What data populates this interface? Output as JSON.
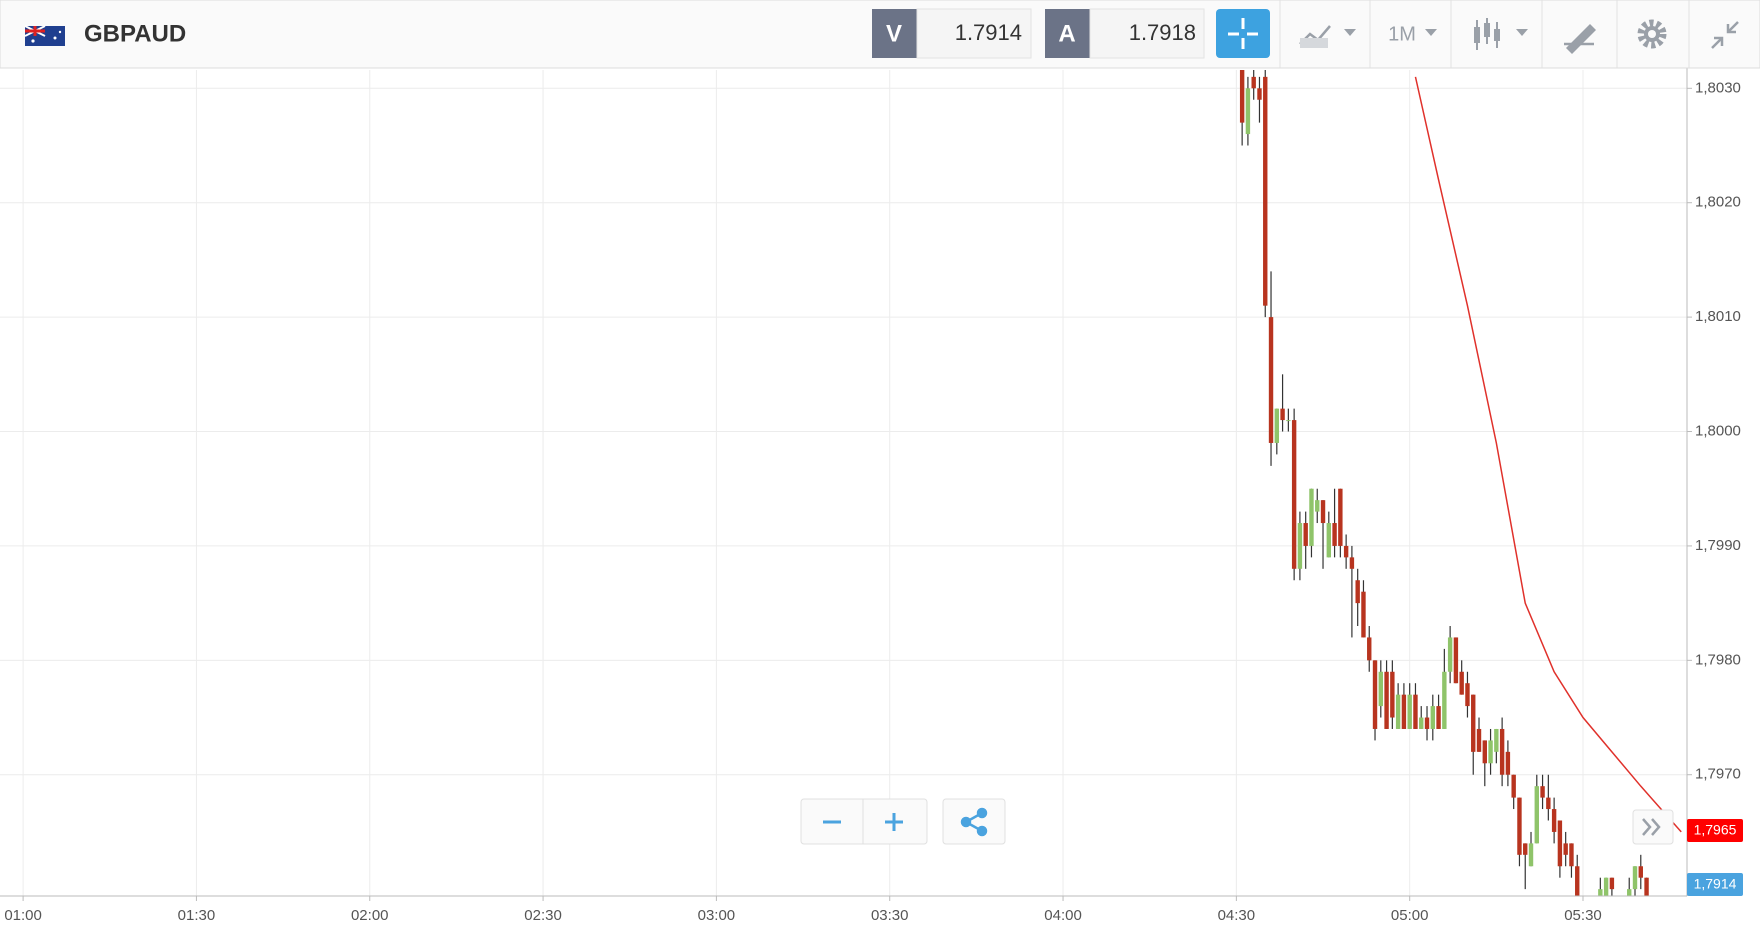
{
  "toolbar": {
    "symbol": "GBPAUD",
    "sell_label": "V",
    "sell_price": "1.7914",
    "buy_label": "A",
    "buy_price": "1.7918",
    "timeframe": "1M"
  },
  "chart_data": {
    "type": "candlestick",
    "x": [
      "04:31",
      "04:32",
      "04:33",
      "04:34",
      "04:35",
      "04:36",
      "04:37",
      "04:38",
      "04:39",
      "04:40",
      "04:41",
      "04:42",
      "04:43",
      "04:44",
      "04:45",
      "04:46",
      "04:47",
      "04:48",
      "04:49",
      "04:50",
      "04:51",
      "04:52",
      "04:53",
      "04:54",
      "04:55",
      "04:56",
      "04:57",
      "04:58",
      "04:59",
      "05:00",
      "05:01",
      "05:02",
      "05:03",
      "05:04",
      "05:05",
      "05:06",
      "05:07",
      "05:08",
      "05:09",
      "05:10",
      "05:11",
      "05:12",
      "05:13",
      "05:14",
      "05:15",
      "05:16",
      "05:17",
      "05:18",
      "05:19",
      "05:20",
      "05:21",
      "05:22",
      "05:23",
      "05:24",
      "05:25",
      "05:26",
      "05:27",
      "05:28",
      "05:29",
      "05:33",
      "05:34",
      "05:35",
      "05:38",
      "05:39",
      "05:40",
      "05:41"
    ],
    "open": [
      1.8033,
      1.8026,
      1.8031,
      1.803,
      1.8031,
      1.801,
      1.7999,
      1.8002,
      1.8001,
      1.8001,
      1.7988,
      1.7992,
      1.799,
      1.7993,
      1.7994,
      1.7989,
      1.7992,
      1.7995,
      1.799,
      1.7989,
      1.7987,
      1.7986,
      1.7982,
      1.798,
      1.7976,
      1.7979,
      1.7979,
      1.7974,
      1.7977,
      1.7974,
      1.7977,
      1.7974,
      1.7975,
      1.7974,
      1.7976,
      1.7974,
      1.7979,
      1.7982,
      1.7979,
      1.7978,
      1.7977,
      1.7974,
      1.7973,
      1.7971,
      1.7972,
      1.7974,
      1.7972,
      1.797,
      1.7968,
      1.7964,
      1.7962,
      1.7964,
      1.7969,
      1.7968,
      1.7967,
      1.7966,
      1.7964,
      1.7964,
      1.7962,
      1.7958,
      1.7959,
      1.7961,
      1.7959,
      1.796,
      1.7962,
      1.7961
    ],
    "high": [
      1.8034,
      1.8031,
      1.8032,
      1.8031,
      1.8032,
      1.8014,
      1.8002,
      1.8005,
      1.8002,
      1.8002,
      1.7993,
      1.7993,
      1.7995,
      1.7995,
      1.7994,
      1.7993,
      1.7995,
      1.7995,
      1.7991,
      1.799,
      1.7988,
      1.7987,
      1.7983,
      1.798,
      1.798,
      1.798,
      1.798,
      1.7978,
      1.7978,
      1.7978,
      1.7978,
      1.7976,
      1.7976,
      1.7977,
      1.7977,
      1.7981,
      1.7983,
      1.7982,
      1.798,
      1.7979,
      1.7977,
      1.7975,
      1.7973,
      1.7974,
      1.7974,
      1.7975,
      1.7973,
      1.797,
      1.7968,
      1.7964,
      1.7965,
      1.797,
      1.797,
      1.797,
      1.7968,
      1.7966,
      1.7965,
      1.7964,
      1.7963,
      1.7961,
      1.7961,
      1.7961,
      1.7961,
      1.7962,
      1.7963,
      1.7961
    ],
    "low": [
      1.8025,
      1.8025,
      1.8029,
      1.8027,
      1.801,
      1.7997,
      1.7998,
      1.8,
      1.8,
      1.7987,
      1.7987,
      1.7988,
      1.7989,
      1.7992,
      1.7988,
      1.7989,
      1.7989,
      1.7989,
      1.7988,
      1.7982,
      1.7983,
      1.7982,
      1.7979,
      1.7973,
      1.7975,
      1.7974,
      1.7974,
      1.7974,
      1.7974,
      1.7974,
      1.7974,
      1.7974,
      1.7973,
      1.7973,
      1.7974,
      1.7974,
      1.7978,
      1.7978,
      1.7977,
      1.7975,
      1.797,
      1.7972,
      1.7969,
      1.797,
      1.7971,
      1.7969,
      1.7969,
      1.7967,
      1.7962,
      1.796,
      1.7962,
      1.7964,
      1.7967,
      1.7966,
      1.7964,
      1.7961,
      1.7962,
      1.7961,
      1.7957,
      1.7957,
      1.7958,
      1.7959,
      1.7958,
      1.7959,
      1.796,
      1.7958
    ],
    "close": [
      1.8027,
      1.803,
      1.803,
      1.8029,
      1.8011,
      1.7999,
      1.8002,
      1.8001,
      1.8001,
      1.7988,
      1.7992,
      1.799,
      1.7995,
      1.7994,
      1.7992,
      1.7992,
      1.799,
      1.799,
      1.7989,
      1.7988,
      1.7985,
      1.7982,
      1.798,
      1.7974,
      1.7979,
      1.7974,
      1.7975,
      1.7977,
      1.7974,
      1.7977,
      1.7974,
      1.7975,
      1.7974,
      1.7976,
      1.7974,
      1.7979,
      1.7982,
      1.7978,
      1.7977,
      1.7976,
      1.7972,
      1.7972,
      1.7971,
      1.7973,
      1.7974,
      1.797,
      1.797,
      1.7968,
      1.7963,
      1.7963,
      1.7964,
      1.7969,
      1.7968,
      1.7967,
      1.7965,
      1.7962,
      1.7963,
      1.7962,
      1.7958,
      1.796,
      1.7961,
      1.796,
      1.796,
      1.7962,
      1.7961,
      1.7959
    ],
    "up_color": "#8fc46a",
    "down_color": "#b8341f",
    "wick_color": "#333333",
    "line": {
      "type": "line",
      "color": "#e0312b",
      "x": [
        "05:01",
        "05:05",
        "05:10",
        "05:15",
        "05:20",
        "05:25",
        "05:30",
        "05:35",
        "05:40",
        "05:47"
      ],
      "values": [
        1.8031,
        1.8022,
        1.8011,
        1.7999,
        1.7985,
        1.7979,
        1.7975,
        1.7972,
        1.7969,
        1.7965
      ]
    },
    "badges": [
      {
        "label": "1,7965",
        "color": "#ff0000"
      },
      {
        "label": "1,7914",
        "color": "#4aa3df"
      }
    ],
    "xlim": [
      "00:56",
      "05:48"
    ],
    "ylim": [
      1.79594,
      1.80316
    ],
    "xticks": [
      "01:00",
      "01:30",
      "02:00",
      "02:30",
      "03:00",
      "03:30",
      "04:00",
      "04:30",
      "05:00",
      "05:30"
    ],
    "yticks": [
      {
        "value": 1.803,
        "label": "1,8030"
      },
      {
        "value": 1.802,
        "label": "1,8020"
      },
      {
        "value": 1.801,
        "label": "1,8010"
      },
      {
        "value": 1.8,
        "label": "1,8000"
      },
      {
        "value": 1.799,
        "label": "1,7990"
      },
      {
        "value": 1.798,
        "label": "1,7980"
      },
      {
        "value": 1.797,
        "label": "1,7970"
      }
    ],
    "grid": true
  }
}
